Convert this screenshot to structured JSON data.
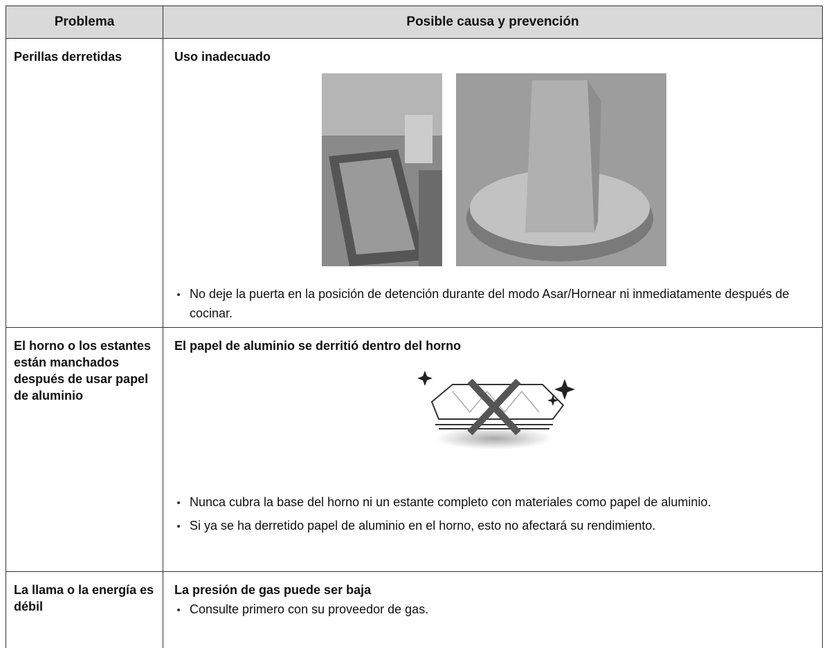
{
  "table": {
    "header": [
      "Problema",
      "Posible causa y prevención"
    ],
    "rows": [
      {
        "problem": "Perillas derretidas",
        "cause": "Uso inadecuado",
        "bullets": [
          "No deje la puerta en la posición de detención durante del modo Asar/Hornear ni inmediatamente después de cocinar."
        ]
      },
      {
        "problem": "El horno o los estantes están manchados después de usar papel de aluminio",
        "cause": "El papel de aluminio se derritió dentro del horno",
        "bullets": [
          "Nunca cubra la base del horno ni un estante completo con materiales como papel de aluminio.",
          "Si ya se ha derretido papel de aluminio en el horno, esto no afectará su rendimiento."
        ]
      },
      {
        "problem": "La llama o la energía es débil",
        "cause": "La presión de gas puede ser baja",
        "bullets": [
          "Consulte primero con su proveedor de gas."
        ]
      }
    ]
  }
}
